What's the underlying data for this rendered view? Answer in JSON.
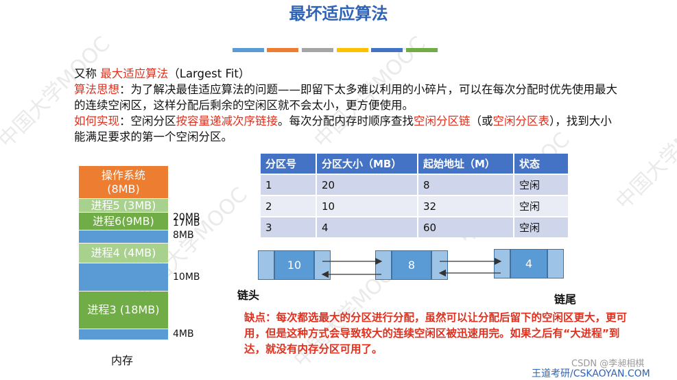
{
  "title": "最坏适应算法",
  "stripe_colors": [
    "#5b9bd5",
    "#ed7d31",
    "#a5a5a5",
    "#ffc000",
    "#4472c4",
    "#70ad47"
  ],
  "watermark_text": [
    "中国大学MOOC",
    "中国大学MOOC",
    "中国大学MOOC",
    "中国大学MOOC",
    "中国大学MOOC",
    "中国大学MOOC"
  ],
  "intro": {
    "line1_prefix": "又称 ",
    "line1_red": "最大适应算法",
    "line1_suffix": "（Largest Fit）",
    "idea_label": "算法思想",
    "idea_text": "：为了解决最佳适应算法的问题——即留下太多难以利用的小碎片，可以在每次分配时优先使用最大的连续空闲区，这样分配后剩余的空闲区就不会太小，更方便使用。",
    "how_label": "如何实现",
    "how_sep": "：空闲分区",
    "how_red1": "按容量递减次序链接",
    "how_mid": "。每次分配内存时顺序查找",
    "how_red2": "空闲分区链",
    "how_mid2": "（或",
    "how_red3": "空闲分区表",
    "how_end": "），找到大小能满足要求的第一个空闲分区。"
  },
  "memory": {
    "caption": "内存",
    "blocks": [
      {
        "label": "操作系统\n(8MB)",
        "color": "#ed7d31"
      },
      {
        "label": "进程5 (3MB)",
        "color": "#a9d18e"
      },
      {
        "label": "进程6(9MB)",
        "color": "#70ad47"
      },
      {
        "label": "",
        "color": "#5b9bd5"
      },
      {
        "label": "进程4 (4MB)",
        "color": "#a9d18e"
      },
      {
        "label": "",
        "color": "#5b9bd5"
      },
      {
        "label": "进程3 (18MB)",
        "color": "#70ad47"
      },
      {
        "label": "",
        "color": "#5b9bd5"
      }
    ],
    "size_labels": [
      "20MB",
      "17MB",
      "8MB",
      "10MB",
      "4MB"
    ]
  },
  "table": {
    "headers": [
      "分区号",
      "分区大小（MB）",
      "起始地址（M）",
      "状态"
    ],
    "rows": [
      [
        "1",
        "20",
        "8",
        "空闲"
      ],
      [
        "2",
        "10",
        "32",
        "空闲"
      ],
      [
        "3",
        "4",
        "60",
        "空闲"
      ]
    ]
  },
  "chain": {
    "nodes": [
      "10",
      "8",
      "4"
    ],
    "head_label": "链头",
    "tail_label": "链尾"
  },
  "drawback": "缺点：每次都选最大的分区进行分配，虽然可以让分配后留下的空闲区更大，更可用，但是这种方式会导致较大的连续空闲区被迅速用完。如果之后有“大进程”到达，就没有内存分区可用了。",
  "footer": {
    "csdn": "CSDN @李昶相棋",
    "brand": "王道考研/CSKAOYAN.COM"
  }
}
